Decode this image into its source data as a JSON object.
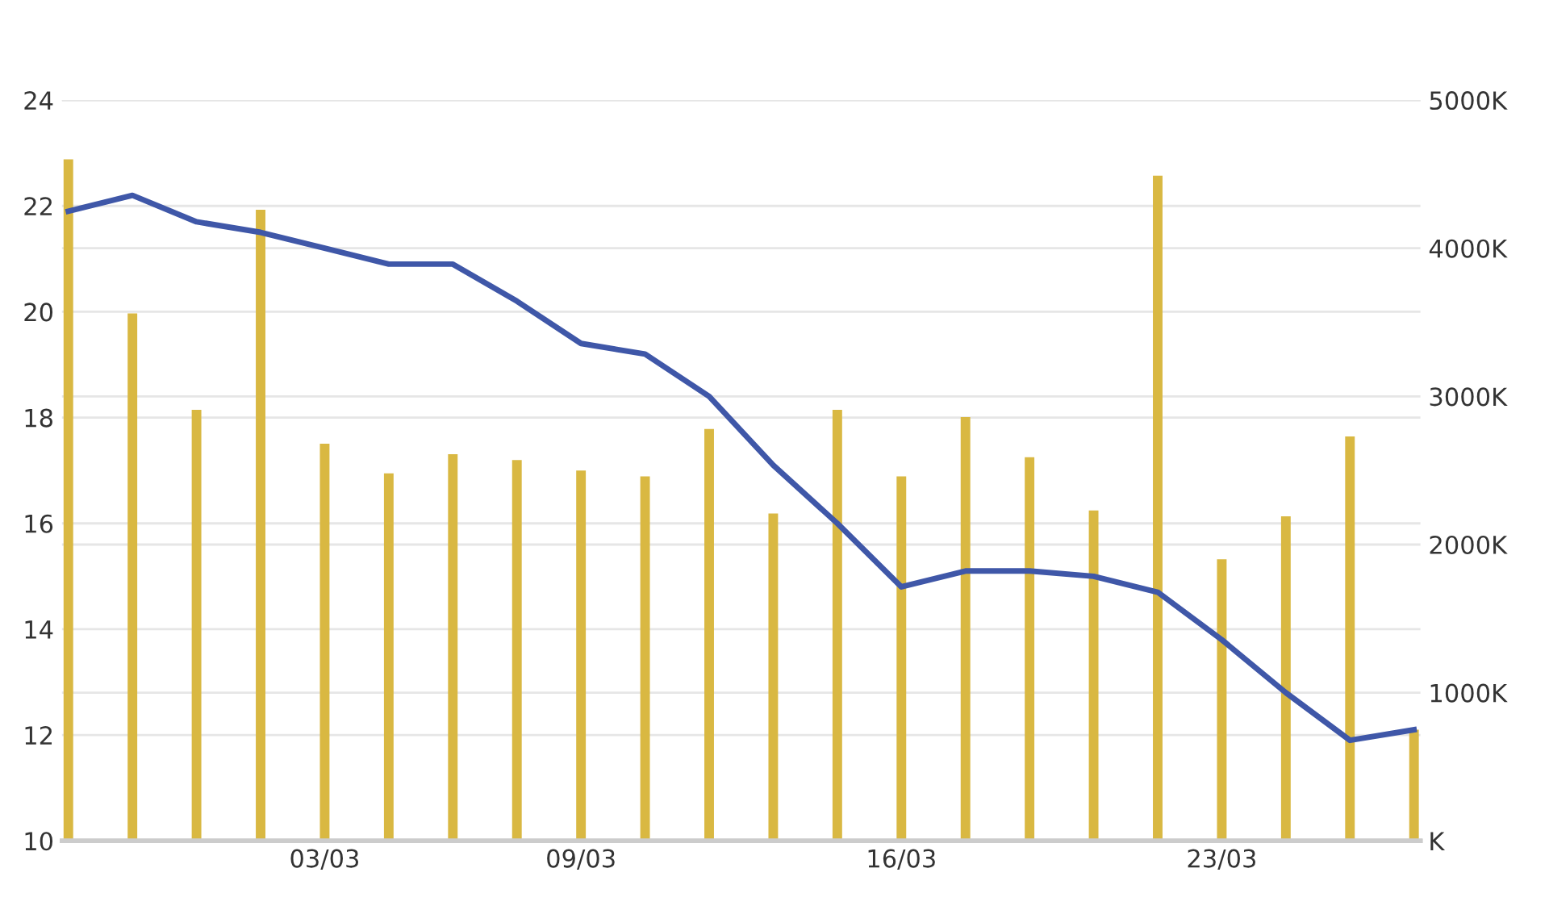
{
  "chart_data": {
    "type": "bar",
    "categories": [
      null,
      null,
      null,
      null,
      "03/03",
      null,
      null,
      null,
      "09/03",
      null,
      null,
      null,
      null,
      "16/03",
      null,
      null,
      null,
      null,
      "23/03",
      null,
      null,
      null
    ],
    "series": [
      {
        "axis": "y2",
        "color": "#d9b842",
        "values": [
          4600,
          3560,
          2910,
          4260,
          2680,
          2480,
          2610,
          2570,
          2500,
          2460,
          2780,
          2210,
          2910,
          2460,
          2860,
          2590,
          2230,
          4490,
          1900,
          2190,
          2730,
          750
        ]
      },
      {
        "type": "line",
        "axis": "y",
        "color": "#3f57a8",
        "values": [
          21.9,
          22.2,
          21.7,
          21.5,
          21.2,
          20.9,
          20.9,
          20.2,
          19.4,
          19.2,
          18.4,
          17.1,
          16.0,
          14.8,
          15.1,
          15.1,
          15.0,
          14.7,
          13.8,
          12.8,
          11.9,
          12.1
        ]
      }
    ],
    "ylim": [
      10,
      24
    ],
    "yticks": [
      10,
      12,
      14,
      16,
      18,
      20,
      22,
      24
    ],
    "y2lim": [
      0,
      5000
    ],
    "y2ticks": [
      {
        "value": 0,
        "label": "K"
      },
      {
        "value": 1000,
        "label": "1000K"
      },
      {
        "value": 2000,
        "label": "2000K"
      },
      {
        "value": 3000,
        "label": "3000K"
      },
      {
        "value": 4000,
        "label": "4000K"
      },
      {
        "value": 5000,
        "label": "5000K"
      }
    ],
    "grid": true,
    "marker": "none",
    "line_style": "solid"
  }
}
